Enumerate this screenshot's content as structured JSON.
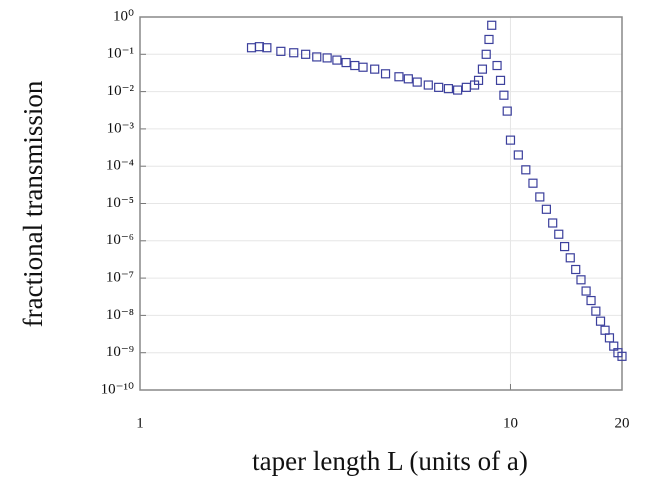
{
  "chart_data": {
    "type": "scatter",
    "xlabel": "taper length L (units of a)",
    "ylabel": "fractional transmission",
    "xlog": true,
    "ylog": true,
    "grid": true,
    "xlim": [
      1,
      20
    ],
    "ylim": [
      1e-10,
      1
    ],
    "xticks": [
      1,
      10,
      20
    ],
    "yticks": [
      {
        "value": 1,
        "label": "10⁰"
      },
      {
        "value": 0.1,
        "label": "10⁻¹"
      },
      {
        "value": 0.01,
        "label": "10⁻²"
      },
      {
        "value": 0.001,
        "label": "10⁻³"
      },
      {
        "value": 0.0001,
        "label": "10⁻⁴"
      },
      {
        "value": 1e-05,
        "label": "10⁻⁵"
      },
      {
        "value": 1e-06,
        "label": "10⁻⁶"
      },
      {
        "value": 1e-07,
        "label": "10⁻⁷"
      },
      {
        "value": 1e-08,
        "label": "10⁻⁸"
      },
      {
        "value": 1e-09,
        "label": "10⁻⁹"
      },
      {
        "value": 1e-10,
        "label": "10⁻¹⁰"
      }
    ],
    "series": [
      {
        "color": "#3b3f9c",
        "x": [
          2.0,
          2.1,
          2.2,
          2.4,
          2.6,
          2.8,
          3.0,
          3.2,
          3.4,
          3.6,
          3.8,
          4.0,
          4.3,
          4.6,
          5.0,
          5.3,
          5.6,
          6.0,
          6.4,
          6.8,
          7.2,
          7.6,
          8.0,
          8.2,
          8.4,
          8.6,
          8.75,
          8.9,
          9.2,
          9.4,
          9.6,
          9.8,
          10,
          10.5,
          11,
          11.5,
          12,
          12.5,
          13,
          13.5,
          14,
          14.5,
          15,
          15.5,
          16,
          16.5,
          17,
          17.5,
          18,
          18.5,
          19,
          19.5,
          20
        ],
        "values": [
          0.15,
          0.16,
          0.15,
          0.12,
          0.11,
          0.1,
          0.085,
          0.08,
          0.07,
          0.06,
          0.05,
          0.045,
          0.04,
          0.03,
          0.025,
          0.022,
          0.018,
          0.015,
          0.013,
          0.012,
          0.011,
          0.013,
          0.015,
          0.02,
          0.04,
          0.1,
          0.25,
          0.6,
          0.05,
          0.02,
          0.008,
          0.003,
          0.0005,
          0.0002,
          8e-05,
          3.5e-05,
          1.5e-05,
          7e-06,
          3e-06,
          1.5e-06,
          7e-07,
          3.5e-07,
          1.7e-07,
          9e-08,
          4.5e-08,
          2.5e-08,
          1.3e-08,
          7e-09,
          4e-09,
          2.5e-09,
          1.5e-09,
          1e-09,
          8e-10
        ]
      }
    ]
  }
}
